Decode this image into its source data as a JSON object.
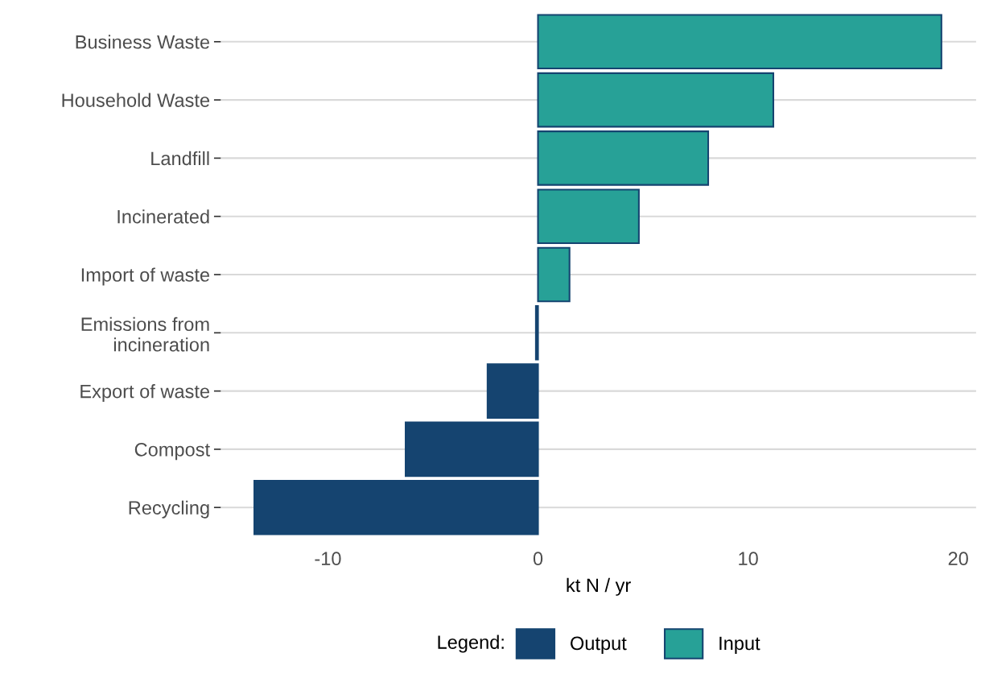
{
  "chart_data": {
    "type": "bar",
    "orientation": "horizontal",
    "xlabel": "kt N / yr",
    "legend_title": "Legend:",
    "legend": "bottom",
    "grid": "y",
    "categories": [
      "Business Waste",
      "Household Waste",
      "Landfill",
      "Incinerated",
      "Import of waste",
      "Emissions from\nincineration",
      "Export of waste",
      "Compost",
      "Recycling"
    ],
    "series": [
      {
        "name": "Output",
        "color": "#154470",
        "values": [
          null,
          null,
          null,
          null,
          null,
          -0.1,
          -2.4,
          -6.3,
          -13.5
        ]
      },
      {
        "name": "Input",
        "color": "#27a197",
        "values": [
          19.2,
          11.2,
          8.1,
          4.8,
          1.5,
          null,
          null,
          null,
          null
        ]
      }
    ],
    "xlim": [
      -15.1,
      20.85
    ],
    "xticks": [
      -10,
      0,
      10,
      20
    ]
  }
}
